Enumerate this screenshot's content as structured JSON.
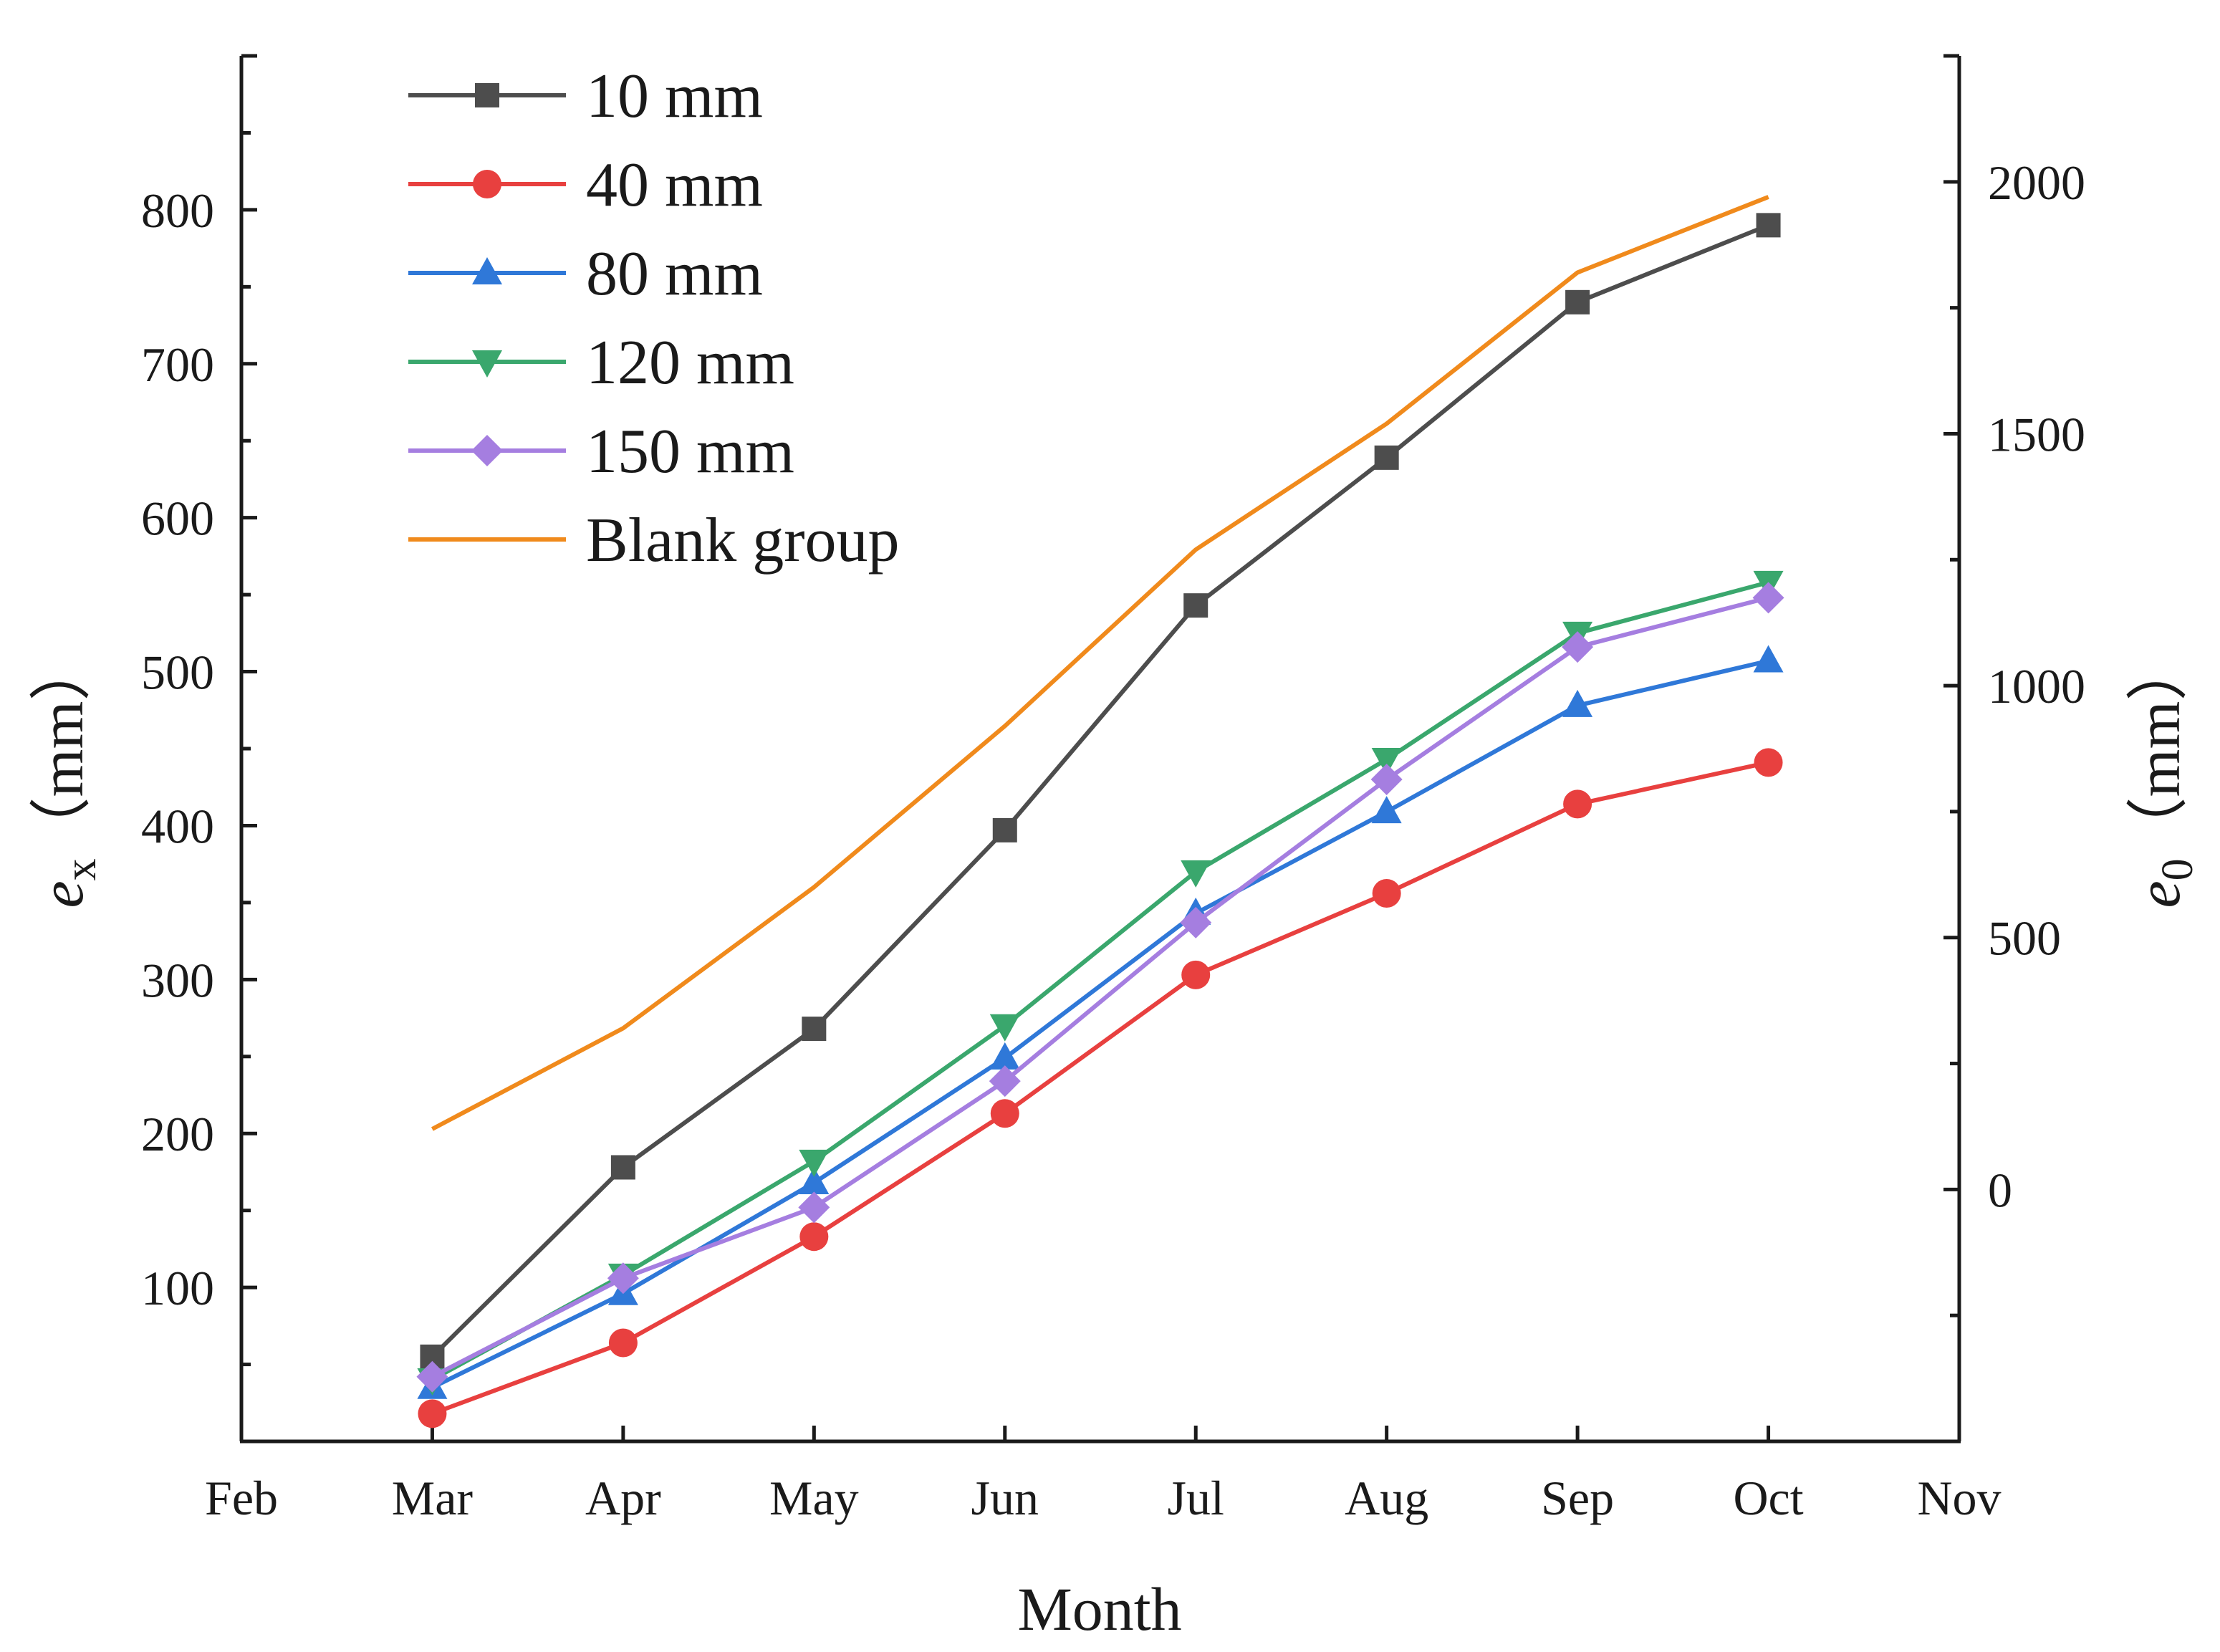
{
  "chart_data": {
    "type": "line",
    "x_label": "Month",
    "y_left_label": {
      "var": "e",
      "sub": "x",
      "unit": "（mm）"
    },
    "y_right_label": {
      "var": "e",
      "sub": "0",
      "unit": "（mm）"
    },
    "categories": [
      "Feb",
      "Mar",
      "Apr",
      "May",
      "Jun",
      "Jul",
      "Aug",
      "Sep",
      "Oct",
      "Nov"
    ],
    "y_left": {
      "min": 0,
      "max": 900,
      "ticks": [
        100,
        200,
        300,
        400,
        500,
        600,
        700,
        800
      ]
    },
    "y_right": {
      "min": -500,
      "max": 2250,
      "ticks": [
        0,
        500,
        1000,
        1500,
        2000
      ]
    },
    "grid": false,
    "legend_position": "top-left",
    "series": [
      {
        "name": "10 mm",
        "axis": "left",
        "color": "#4d4d4d",
        "marker": "square",
        "x": [
          "Mar",
          "Apr",
          "May",
          "Jun",
          "Jul",
          "Aug",
          "Sep",
          "Oct"
        ],
        "values": [
          55,
          178,
          268,
          397,
          543,
          639,
          740,
          790
        ]
      },
      {
        "name": "40 mm",
        "axis": "left",
        "color": "#e8403f",
        "marker": "circle",
        "x": [
          "Mar",
          "Apr",
          "May",
          "Jun",
          "Jul",
          "Aug",
          "Sep",
          "Oct"
        ],
        "values": [
          18,
          64,
          133,
          213,
          303,
          356,
          414,
          441
        ]
      },
      {
        "name": "80 mm",
        "axis": "left",
        "color": "#2f78d8",
        "marker": "triangle-up",
        "x": [
          "Mar",
          "Apr",
          "May",
          "Jun",
          "Jul",
          "Aug",
          "Sep",
          "Oct"
        ],
        "values": [
          35,
          96,
          168,
          249,
          343,
          409,
          478,
          507
        ]
      },
      {
        "name": "120 mm",
        "axis": "left",
        "color": "#3aa76d",
        "marker": "triangle-down",
        "x": [
          "Mar",
          "Apr",
          "May",
          "Jun",
          "Jul",
          "Aug",
          "Sep",
          "Oct"
        ],
        "values": [
          40,
          108,
          182,
          270,
          370,
          443,
          525,
          558
        ]
      },
      {
        "name": "150 mm",
        "axis": "left",
        "color": "#a57ee0",
        "marker": "diamond",
        "x": [
          "Mar",
          "Apr",
          "May",
          "Jun",
          "Jul",
          "Aug",
          "Sep",
          "Oct"
        ],
        "values": [
          42,
          106,
          152,
          234,
          337,
          430,
          516,
          548
        ]
      },
      {
        "name": "Blank group",
        "axis": "right",
        "color": "#f08a1c",
        "marker": "none",
        "x": [
          "Mar",
          "Apr",
          "May",
          "Jun",
          "Jul",
          "Aug",
          "Sep",
          "Oct"
        ],
        "values": [
          120,
          320,
          600,
          920,
          1270,
          1520,
          1820,
          1970
        ]
      }
    ]
  }
}
